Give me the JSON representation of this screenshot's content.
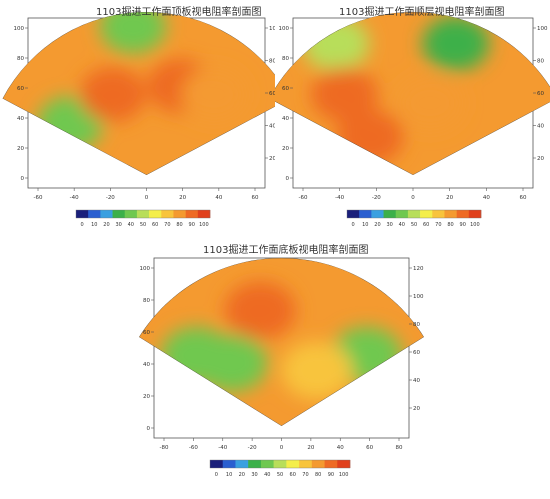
{
  "colorbar": {
    "ticks": [
      "0",
      "10",
      "20",
      "30",
      "40",
      "50",
      "60",
      "70",
      "80",
      "90",
      "100"
    ],
    "colors": [
      "#1a1f7a",
      "#2a5fd0",
      "#3aa0e0",
      "#3cb04a",
      "#6fc850",
      "#b8de5a",
      "#f4ee4a",
      "#f8c43c",
      "#f49a30",
      "#ee6a24",
      "#e0401c"
    ]
  },
  "chart_data": [
    {
      "type": "heatmap",
      "title": "1103掘进工作面顶板视电阻率剖面图",
      "xlabel": "",
      "ylabel": "",
      "xlim": [
        -70,
        70
      ],
      "ylim": [
        0,
        100
      ],
      "x_ticks": [
        "-60",
        "-40",
        "-20",
        "0",
        "20",
        "40",
        "60"
      ],
      "y_ticks": [
        "0",
        "20",
        "40",
        "60",
        "80",
        "100"
      ],
      "y_ticks_right": [
        "20",
        "40",
        "60",
        "80",
        "100"
      ],
      "colorbar_ticks": [
        "0",
        "10",
        "20",
        "30",
        "40",
        "50",
        "60",
        "70",
        "80",
        "90",
        "100"
      ],
      "zones": [
        {
          "x": -45,
          "y": 38,
          "value": 38
        },
        {
          "x": -8,
          "y": 95,
          "value": 35
        },
        {
          "x": -20,
          "y": 55,
          "value": 92
        },
        {
          "x": 20,
          "y": 60,
          "value": 85
        },
        {
          "x": 40,
          "y": 55,
          "value": 75
        }
      ]
    },
    {
      "type": "heatmap",
      "title": "1103掘进工作面顺层视电阻率剖面图",
      "xlabel": "",
      "ylabel": "",
      "xlim": [
        -70,
        70
      ],
      "ylim": [
        0,
        100
      ],
      "x_ticks": [
        "-60",
        "-40",
        "-20",
        "0",
        "20",
        "40",
        "60"
      ],
      "y_ticks": [
        "0",
        "20",
        "40",
        "60",
        "80",
        "100"
      ],
      "y_ticks_right": [
        "20",
        "40",
        "60",
        "80",
        "100"
      ],
      "colorbar_ticks": [
        "0",
        "10",
        "20",
        "30",
        "40",
        "50",
        "60",
        "70",
        "80",
        "90",
        "100"
      ],
      "zones": [
        {
          "x": -45,
          "y": 85,
          "value": 45
        },
        {
          "x": 25,
          "y": 85,
          "value": 30
        },
        {
          "x": -40,
          "y": 55,
          "value": 92
        },
        {
          "x": -25,
          "y": 30,
          "value": 88
        },
        {
          "x": 10,
          "y": 50,
          "value": 80
        }
      ]
    },
    {
      "type": "heatmap",
      "title": "1103掘进工作面底板视电阻率剖面图",
      "xlabel": "",
      "ylabel": "",
      "xlim": [
        -90,
        90
      ],
      "ylim": [
        0,
        120
      ],
      "x_ticks": [
        "-80",
        "-60",
        "-40",
        "-20",
        "0",
        "20",
        "40",
        "60",
        "80"
      ],
      "y_ticks": [
        "0",
        "20",
        "40",
        "60",
        "80",
        "100"
      ],
      "y_ticks_right": [
        "20",
        "40",
        "60",
        "80",
        "100",
        "120"
      ],
      "colorbar_ticks": [
        "0",
        "10",
        "20",
        "30",
        "40",
        "50",
        "60",
        "70",
        "80",
        "90",
        "100"
      ],
      "zones": [
        {
          "x": -60,
          "y": 55,
          "value": 35
        },
        {
          "x": -35,
          "y": 50,
          "value": 40
        },
        {
          "x": 60,
          "y": 55,
          "value": 35
        },
        {
          "x": -15,
          "y": 85,
          "value": 92
        },
        {
          "x": 25,
          "y": 45,
          "value": 65
        }
      ]
    }
  ]
}
